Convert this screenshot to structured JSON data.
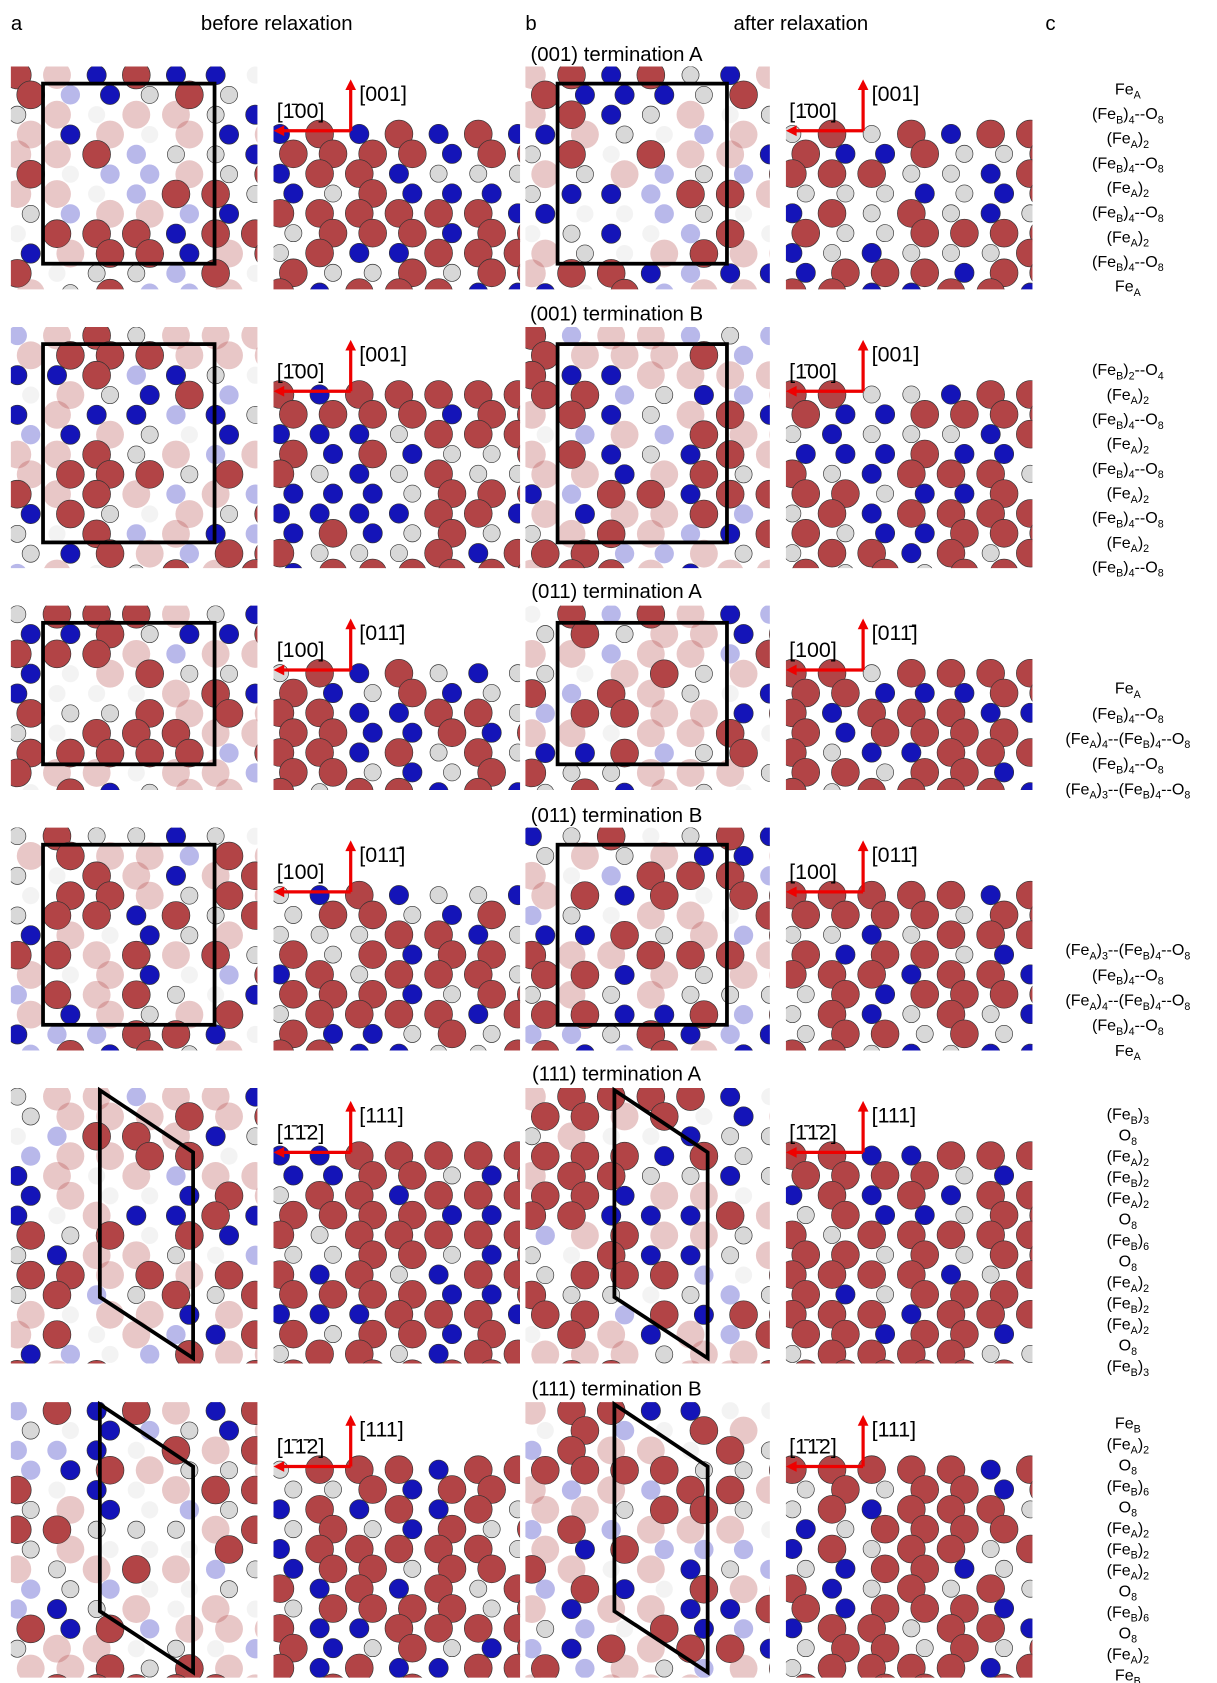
{
  "header": {
    "a": "a",
    "before": "before relaxation",
    "b": "b",
    "after": "after relaxation",
    "c": "c"
  },
  "sections": [
    {
      "title": "(001) termination A",
      "direction_h": "[1̄00]",
      "direction_v": "[001]",
      "layers": [
        [
          "Fe",
          "A"
        ],
        [
          "(Fe",
          "B",
          ")",
          "4",
          "--O",
          "8"
        ],
        [
          "(Fe",
          "A",
          ")",
          "2"
        ],
        [
          "(Fe",
          "B",
          ")",
          "4",
          "--O",
          "8"
        ],
        [
          "(Fe",
          "A",
          ")",
          "2"
        ],
        [
          "(Fe",
          "B",
          ")",
          "4",
          "--O",
          "8"
        ],
        [
          "(Fe",
          "A",
          ")",
          "2"
        ],
        [
          "(Fe",
          "B",
          ")",
          "4",
          "--O",
          "8"
        ],
        [
          "Fe",
          "A"
        ]
      ]
    },
    {
      "title": "(001) termination B",
      "direction_h": "[1̄00]",
      "direction_v": "[001]",
      "layers": [
        [
          "(Fe",
          "B",
          ")",
          "2",
          "--O",
          "4"
        ],
        [
          "(Fe",
          "A",
          ")",
          "2"
        ],
        [
          "(Fe",
          "B",
          ")",
          "4",
          "--O",
          "8"
        ],
        [
          "(Fe",
          "A",
          ")",
          "2"
        ],
        [
          "(Fe",
          "B",
          ")",
          "4",
          "--O",
          "8"
        ],
        [
          "(Fe",
          "A",
          ")",
          "2"
        ],
        [
          "(Fe",
          "B",
          ")",
          "4",
          "--O",
          "8"
        ],
        [
          "(Fe",
          "A",
          ")",
          "2"
        ],
        [
          "(Fe",
          "B",
          ")",
          "4",
          "--O",
          "8"
        ]
      ]
    },
    {
      "title": "(011) termination A",
      "direction_h": "[100]",
      "direction_v": "[011̄]",
      "layers": [
        [
          "Fe",
          "A"
        ],
        [
          "(Fe",
          "B",
          ")",
          "4",
          "--O",
          "8"
        ],
        [
          "(Fe",
          "A",
          ")",
          "4",
          "--(Fe",
          "B",
          ")",
          "4",
          "--O",
          "8"
        ],
        [
          "(Fe",
          "B",
          ")",
          "4",
          "--O",
          "8"
        ],
        [
          "(Fe",
          "A",
          ")",
          "3",
          "--(Fe",
          "B",
          ")",
          "4",
          "--O",
          "8"
        ]
      ]
    },
    {
      "title": "(011) termination B",
      "direction_h": "[100]",
      "direction_v": "[011̄]",
      "layers": [
        [
          "(Fe",
          "A",
          ")",
          "3",
          "--(Fe",
          "B",
          ")",
          "4",
          "--O",
          "8"
        ],
        [
          "(Fe",
          "B",
          ")",
          "4",
          "--O",
          "8"
        ],
        [
          "(Fe",
          "A",
          ")",
          "4",
          "--(Fe",
          "B",
          ")",
          "4",
          "--O",
          "8"
        ],
        [
          "(Fe",
          "B",
          ")",
          "4",
          "--O",
          "8"
        ],
        [
          "Fe",
          "A"
        ]
      ]
    },
    {
      "title": "(111) termination A",
      "direction_h": "[1̄1̄2]",
      "direction_v": "[111]",
      "layers": [
        [
          "(Fe",
          "B",
          ")",
          "3"
        ],
        [
          "O",
          "8"
        ],
        [
          "(Fe",
          "A",
          ")",
          "2"
        ],
        [
          "(Fe",
          "B",
          ")",
          "2"
        ],
        [
          "(Fe",
          "A",
          ")",
          "2"
        ],
        [
          "O",
          "8"
        ],
        [
          "(Fe",
          "B",
          ")",
          "6"
        ],
        [
          "O",
          "8"
        ],
        [
          "(Fe",
          "A",
          ")",
          "2"
        ],
        [
          "(Fe",
          "B",
          ")",
          "2"
        ],
        [
          "(Fe",
          "A",
          ")",
          "2"
        ],
        [
          "O",
          "8"
        ],
        [
          "(Fe",
          "B",
          ")",
          "3"
        ]
      ]
    },
    {
      "title": "(111) termination B",
      "direction_h": "[1̄1̄2]",
      "direction_v": "[111]",
      "layers": [
        [
          "Fe",
          "B"
        ],
        [
          "(Fe",
          "A",
          ")",
          "2"
        ],
        [
          "O",
          "8"
        ],
        [
          "(Fe",
          "B",
          ")",
          "6"
        ],
        [
          "O",
          "8"
        ],
        [
          "(Fe",
          "A",
          ")",
          "2"
        ],
        [
          "(Fe",
          "B",
          ")",
          "2"
        ],
        [
          "(Fe",
          "A",
          ")",
          "2"
        ],
        [
          "O",
          "8"
        ],
        [
          "(Fe",
          "B",
          ")",
          "6"
        ],
        [
          "O",
          "8"
        ],
        [
          "(Fe",
          "A",
          ")",
          "2"
        ],
        [
          "Fe",
          "B"
        ]
      ]
    }
  ]
}
